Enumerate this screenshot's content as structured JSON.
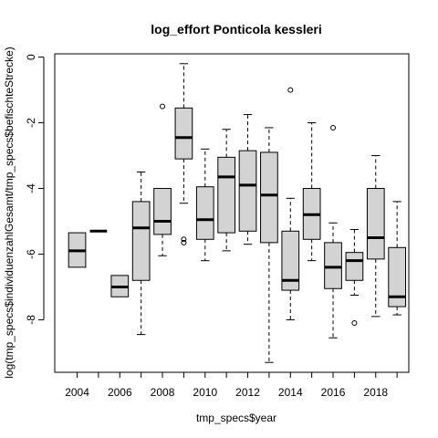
{
  "chart_data": {
    "type": "boxplot",
    "title": "log_effort Ponticola kessleri",
    "xlabel": "tmp_specs$year",
    "ylabel": "log(tmp_specs$individuenzahlGesamt/tmp_specs$befischteStrecke)",
    "ylim": [
      -9.6,
      0.1
    ],
    "y_ticks": [
      0,
      -2,
      -4,
      -6,
      -8
    ],
    "y_tick_labels": [
      "0",
      "-2",
      "-4",
      "-6",
      "-8"
    ],
    "x_tick_labels": [
      "2004",
      "2006",
      "2008",
      "2010",
      "2012",
      "2014",
      "2016",
      "2018"
    ],
    "x_tick_label_years": [
      2004,
      2006,
      2008,
      2010,
      2012,
      2014,
      2016,
      2018
    ],
    "box_fill": "#d3d3d3",
    "groups": [
      {
        "year": 2004,
        "wlo": -6.4,
        "q1": -6.4,
        "median": -5.9,
        "q3": -5.35,
        "whi": -5.35,
        "outliers": []
      },
      {
        "year": 2005,
        "wlo": -5.3,
        "q1": -5.3,
        "median": -5.3,
        "q3": -5.3,
        "whi": -5.3,
        "outliers": []
      },
      {
        "year": 2006,
        "wlo": -7.3,
        "q1": -7.3,
        "median": -7.0,
        "q3": -6.65,
        "whi": -6.65,
        "outliers": []
      },
      {
        "year": 2007,
        "wlo": -8.45,
        "q1": -6.8,
        "median": -5.2,
        "q3": -4.4,
        "whi": -3.5,
        "outliers": []
      },
      {
        "year": 2008,
        "wlo": -6.05,
        "q1": -5.4,
        "median": -5.0,
        "q3": -4.0,
        "whi": -4.0,
        "outliers": [
          -1.5
        ]
      },
      {
        "year": 2009,
        "wlo": -4.45,
        "q1": -3.1,
        "median": -2.45,
        "q3": -1.55,
        "whi": -0.2,
        "outliers": [
          -5.55,
          -5.65
        ]
      },
      {
        "year": 2010,
        "wlo": -6.2,
        "q1": -5.55,
        "median": -4.95,
        "q3": -3.95,
        "whi": -2.8,
        "outliers": []
      },
      {
        "year": 2011,
        "wlo": -5.9,
        "q1": -5.35,
        "median": -3.65,
        "q3": -3.05,
        "whi": -2.2,
        "outliers": []
      },
      {
        "year": 2012,
        "wlo": -5.7,
        "q1": -5.3,
        "median": -3.9,
        "q3": -2.85,
        "whi": -1.75,
        "outliers": []
      },
      {
        "year": 2013,
        "wlo": -9.3,
        "q1": -5.65,
        "median": -4.2,
        "q3": -2.9,
        "whi": -2.15,
        "outliers": []
      },
      {
        "year": 2014,
        "wlo": -8.0,
        "q1": -7.1,
        "median": -6.8,
        "q3": -5.3,
        "whi": -4.3,
        "outliers": [
          -1.0
        ]
      },
      {
        "year": 2015,
        "wlo": -6.2,
        "q1": -5.55,
        "median": -4.8,
        "q3": -4.0,
        "whi": -2.0,
        "outliers": []
      },
      {
        "year": 2016,
        "wlo": -8.55,
        "q1": -7.05,
        "median": -6.4,
        "q3": -5.65,
        "whi": -5.05,
        "outliers": [
          -2.15
        ]
      },
      {
        "year": 2017,
        "wlo": -7.25,
        "q1": -6.8,
        "median": -6.2,
        "q3": -5.95,
        "whi": -5.25,
        "outliers": [
          -8.1
        ]
      },
      {
        "year": 2018,
        "wlo": -7.9,
        "q1": -6.15,
        "median": -5.5,
        "q3": -4.0,
        "whi": -3.0,
        "outliers": []
      },
      {
        "year": 2019,
        "wlo": -7.85,
        "q1": -7.6,
        "median": -7.3,
        "q3": -5.8,
        "whi": -4.4,
        "outliers": []
      }
    ]
  }
}
